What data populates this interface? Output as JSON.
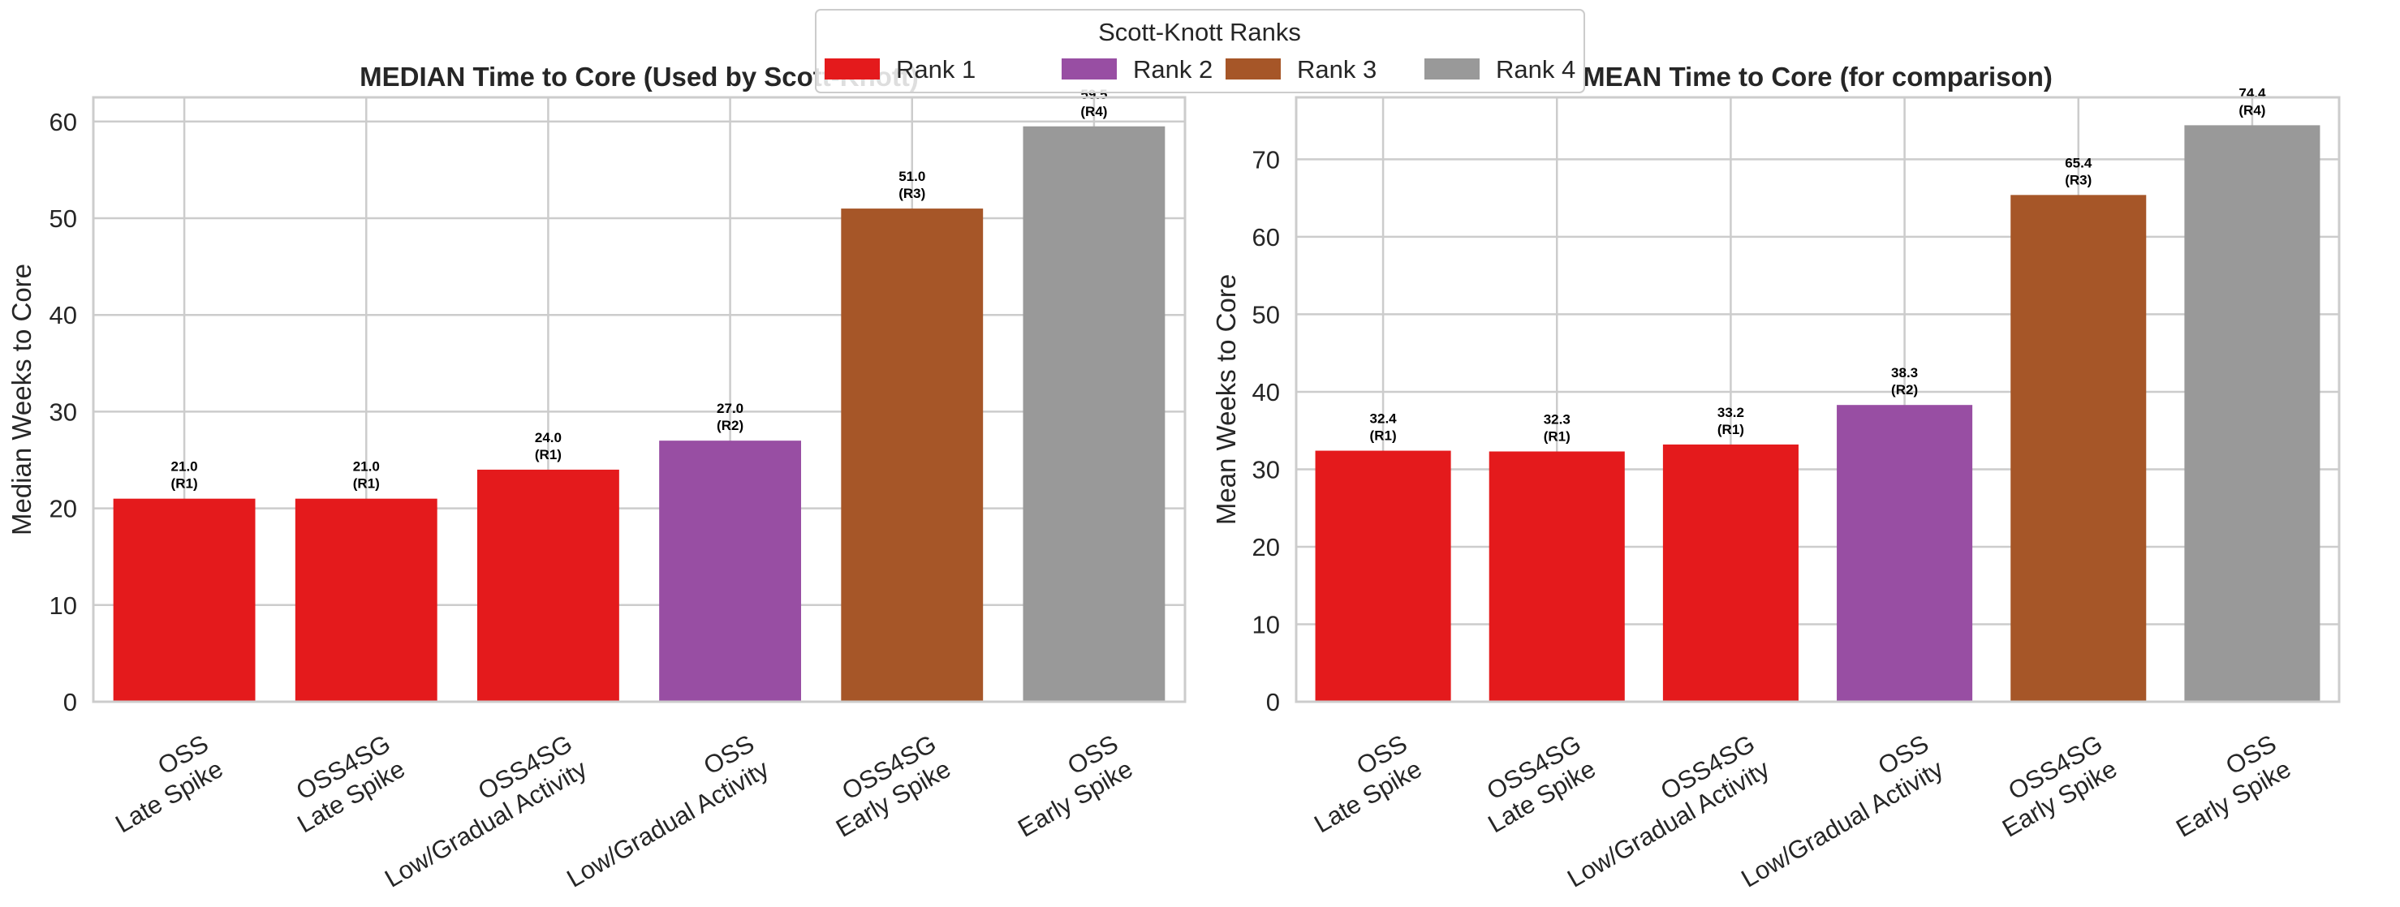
{
  "legend": {
    "title": "Scott-Knott Ranks",
    "placement": "top-center",
    "entries": [
      {
        "label": "Rank 1",
        "color": "#e41a1c"
      },
      {
        "label": "Rank 2",
        "color": "#984ea3"
      },
      {
        "label": "Rank 3",
        "color": "#a65628"
      },
      {
        "label": "Rank 4",
        "color": "#999999"
      }
    ]
  },
  "chart_data": [
    {
      "type": "bar",
      "title": "MEDIAN Time to Core (Used by Scott-Knott)",
      "ylabel": "Median Weeks to Core",
      "xlabel": "",
      "ylim": [
        0,
        62.5
      ],
      "yticks": [
        0,
        10,
        20,
        30,
        40,
        50,
        60
      ],
      "grid": true,
      "categories": [
        [
          "OSS",
          "Late Spike"
        ],
        [
          "OSS4SG",
          "Late Spike"
        ],
        [
          "OSS4SG",
          "Low/Gradual Activity"
        ],
        [
          "OSS",
          "Low/Gradual Activity"
        ],
        [
          "OSS4SG",
          "Early Spike"
        ],
        [
          "OSS",
          "Early Spike"
        ]
      ],
      "values": [
        21.0,
        21.0,
        24.0,
        27.0,
        51.0,
        59.5
      ],
      "ranks": [
        1,
        1,
        1,
        2,
        3,
        4
      ],
      "value_labels": [
        "21.0",
        "21.0",
        "24.0",
        "27.0",
        "51.0",
        "59.5"
      ],
      "rank_labels": [
        "(R1)",
        "(R1)",
        "(R1)",
        "(R2)",
        "(R3)",
        "(R4)"
      ]
    },
    {
      "type": "bar",
      "title": "MEAN Time to Core (for comparison)",
      "ylabel": "Mean Weeks to Core",
      "xlabel": "",
      "ylim": [
        0,
        78
      ],
      "yticks": [
        0,
        10,
        20,
        30,
        40,
        50,
        60,
        70
      ],
      "grid": true,
      "categories": [
        [
          "OSS",
          "Late Spike"
        ],
        [
          "OSS4SG",
          "Late Spike"
        ],
        [
          "OSS4SG",
          "Low/Gradual Activity"
        ],
        [
          "OSS",
          "Low/Gradual Activity"
        ],
        [
          "OSS4SG",
          "Early Spike"
        ],
        [
          "OSS",
          "Early Spike"
        ]
      ],
      "values": [
        32.4,
        32.3,
        33.2,
        38.3,
        65.4,
        74.4
      ],
      "ranks": [
        1,
        1,
        1,
        2,
        3,
        4
      ],
      "value_labels": [
        "32.4",
        "32.3",
        "33.2",
        "38.3",
        "65.4",
        "74.4"
      ],
      "rank_labels": [
        "(R1)",
        "(R1)",
        "(R1)",
        "(R2)",
        "(R3)",
        "(R4)"
      ]
    }
  ]
}
